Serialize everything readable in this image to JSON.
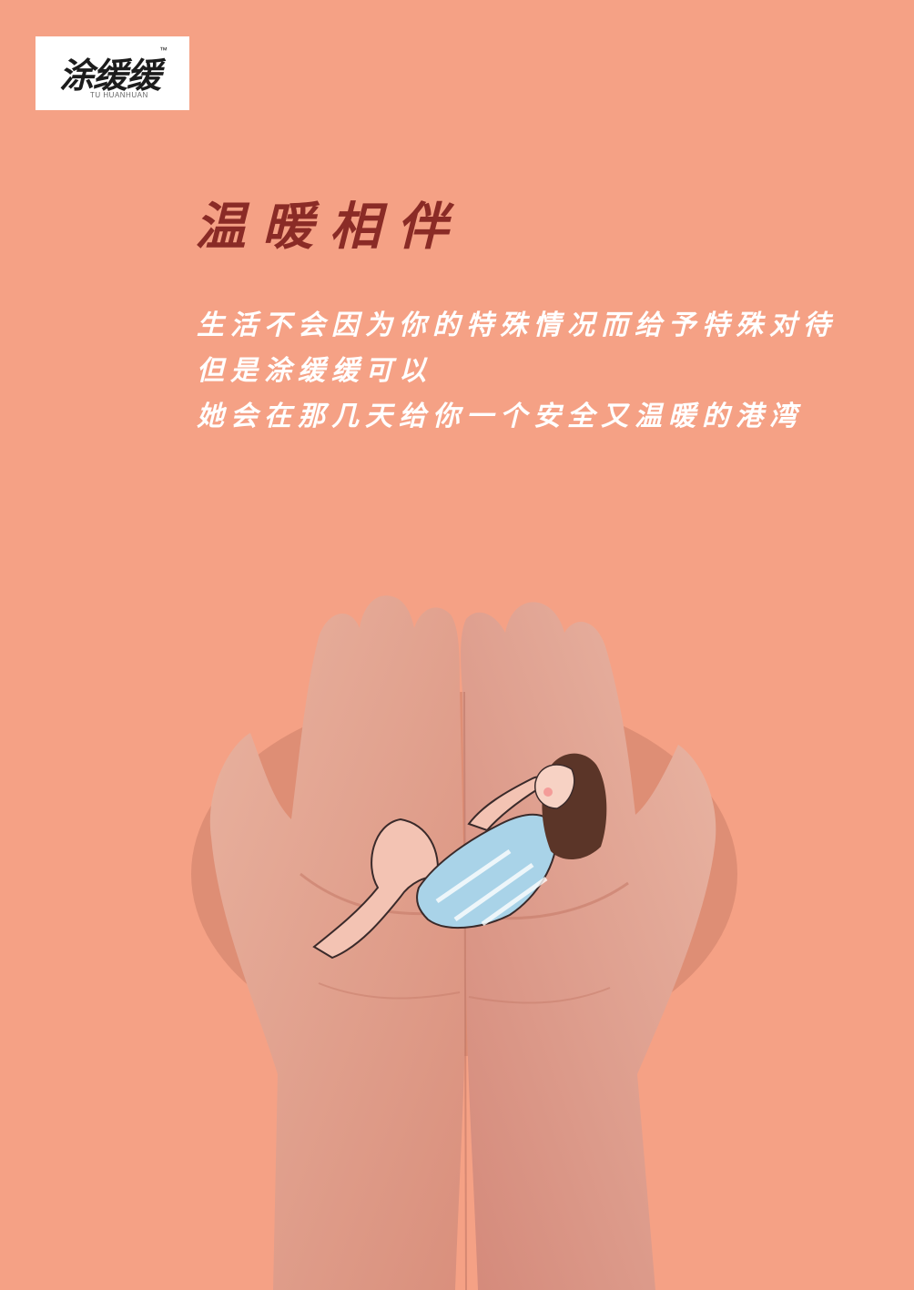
{
  "logo": {
    "name": "涂缓缓",
    "tm": "™",
    "subtitle": "TU HUANHUAN"
  },
  "title": "温暖相伴",
  "body_lines": [
    "生活不会因为你的特殊情况而给予特殊对待",
    "但是涂缓缓可以",
    "她会在那几天给你一个安全又温暖的港湾"
  ],
  "colors": {
    "background": "#f5a185",
    "title": "#8a2b26",
    "body_text": "#ffffff"
  }
}
